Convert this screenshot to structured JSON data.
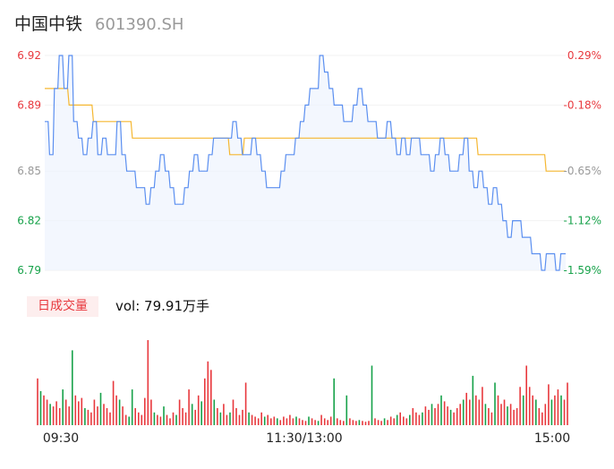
{
  "header": {
    "name": "中国中铁",
    "code": "601390.SH"
  },
  "volume": {
    "tab_label": "日成交量",
    "readout": "vol: 79.91万手"
  },
  "colors": {
    "price_line": "#5b8ff0",
    "avg_line": "#f5b731",
    "up": "#e8383d",
    "down": "#17a24a",
    "neutral": "#999999"
  },
  "chart_data": {
    "type": "line",
    "title": "",
    "price_axis": {
      "ylim": [
        6.79,
        6.92
      ],
      "ticks": [
        6.92,
        6.89,
        6.85,
        6.82,
        6.79
      ]
    },
    "pct_axis": {
      "ticks": [
        "0.29%",
        "-0.18%",
        "-0.65%",
        "-1.12%",
        "-1.59%"
      ]
    },
    "x_ticks": [
      "09:30",
      "11:30/13:00",
      "15:00"
    ],
    "price_series": [
      6.88,
      6.86,
      6.9,
      6.92,
      6.9,
      6.92,
      6.88,
      6.87,
      6.86,
      6.87,
      6.88,
      6.86,
      6.87,
      6.86,
      6.86,
      6.88,
      6.86,
      6.85,
      6.85,
      6.84,
      6.84,
      6.83,
      6.84,
      6.85,
      6.86,
      6.85,
      6.84,
      6.83,
      6.83,
      6.84,
      6.85,
      6.86,
      6.85,
      6.85,
      6.86,
      6.87,
      6.87,
      6.87,
      6.87,
      6.88,
      6.87,
      6.86,
      6.86,
      6.87,
      6.86,
      6.85,
      6.84,
      6.84,
      6.84,
      6.85,
      6.86,
      6.86,
      6.87,
      6.88,
      6.89,
      6.9,
      6.9,
      6.92,
      6.91,
      6.9,
      6.89,
      6.89,
      6.88,
      6.88,
      6.89,
      6.9,
      6.89,
      6.88,
      6.88,
      6.87,
      6.87,
      6.88,
      6.87,
      6.86,
      6.87,
      6.86,
      6.87,
      6.87,
      6.86,
      6.86,
      6.85,
      6.86,
      6.87,
      6.86,
      6.85,
      6.85,
      6.86,
      6.87,
      6.85,
      6.84,
      6.85,
      6.84,
      6.83,
      6.84,
      6.83,
      6.82,
      6.81,
      6.82,
      6.82,
      6.81,
      6.81,
      6.8,
      6.8,
      6.79,
      6.8,
      6.8,
      6.79,
      6.8,
      6.8
    ],
    "avg_series": [
      6.9,
      6.9,
      6.9,
      6.9,
      6.9,
      6.89,
      6.89,
      6.89,
      6.89,
      6.89,
      6.88,
      6.88,
      6.88,
      6.88,
      6.88,
      6.88,
      6.88,
      6.88,
      6.87,
      6.87,
      6.87,
      6.87,
      6.87,
      6.87,
      6.87,
      6.87,
      6.87,
      6.87,
      6.87,
      6.87,
      6.87,
      6.87,
      6.87,
      6.87,
      6.87,
      6.87,
      6.87,
      6.87,
      6.86,
      6.86,
      6.86,
      6.87,
      6.87,
      6.87,
      6.87,
      6.87,
      6.87,
      6.87,
      6.87,
      6.87,
      6.87,
      6.87,
      6.87,
      6.87,
      6.87,
      6.87,
      6.87,
      6.87,
      6.87,
      6.87,
      6.87,
      6.87,
      6.87,
      6.87,
      6.87,
      6.87,
      6.87,
      6.87,
      6.87,
      6.87,
      6.87,
      6.87,
      6.87,
      6.87,
      6.87,
      6.87,
      6.87,
      6.87,
      6.87,
      6.87,
      6.87,
      6.87,
      6.87,
      6.87,
      6.87,
      6.87,
      6.87,
      6.87,
      6.87,
      6.86,
      6.86,
      6.86,
      6.86,
      6.86,
      6.86,
      6.86,
      6.86,
      6.86,
      6.86,
      6.86,
      6.86,
      6.86,
      6.86,
      6.85,
      6.85,
      6.85,
      6.85,
      6.85
    ],
    "volume_bars": [
      [
        0.55,
        "up"
      ],
      [
        0.4,
        "down"
      ],
      [
        0.35,
        "up"
      ],
      [
        0.3,
        "up"
      ],
      [
        0.25,
        "down"
      ],
      [
        0.22,
        "up"
      ],
      [
        0.28,
        "up"
      ],
      [
        0.2,
        "up"
      ],
      [
        0.42,
        "down"
      ],
      [
        0.3,
        "up"
      ],
      [
        0.22,
        "up"
      ],
      [
        0.88,
        "down"
      ],
      [
        0.35,
        "up"
      ],
      [
        0.28,
        "up"
      ],
      [
        0.32,
        "up"
      ],
      [
        0.2,
        "down"
      ],
      [
        0.18,
        "up"
      ],
      [
        0.15,
        "up"
      ],
      [
        0.3,
        "up"
      ],
      [
        0.22,
        "up"
      ],
      [
        0.38,
        "down"
      ],
      [
        0.25,
        "up"
      ],
      [
        0.2,
        "up"
      ],
      [
        0.15,
        "up"
      ],
      [
        0.52,
        "up"
      ],
      [
        0.35,
        "up"
      ],
      [
        0.3,
        "down"
      ],
      [
        0.22,
        "up"
      ],
      [
        0.12,
        "up"
      ],
      [
        0.1,
        "down"
      ],
      [
        0.42,
        "down"
      ],
      [
        0.2,
        "up"
      ],
      [
        0.15,
        "up"
      ],
      [
        0.12,
        "up"
      ],
      [
        0.32,
        "up"
      ],
      [
        1.0,
        "up"
      ],
      [
        0.3,
        "up"
      ],
      [
        0.15,
        "down"
      ],
      [
        0.12,
        "up"
      ],
      [
        0.1,
        "up"
      ],
      [
        0.22,
        "down"
      ],
      [
        0.12,
        "up"
      ],
      [
        0.08,
        "up"
      ],
      [
        0.15,
        "up"
      ],
      [
        0.12,
        "down"
      ],
      [
        0.3,
        "up"
      ],
      [
        0.2,
        "up"
      ],
      [
        0.15,
        "up"
      ],
      [
        0.42,
        "up"
      ],
      [
        0.25,
        "down"
      ],
      [
        0.18,
        "up"
      ],
      [
        0.35,
        "up"
      ],
      [
        0.28,
        "down"
      ],
      [
        0.55,
        "up"
      ],
      [
        0.75,
        "up"
      ],
      [
        0.65,
        "up"
      ],
      [
        0.3,
        "down"
      ],
      [
        0.2,
        "up"
      ],
      [
        0.15,
        "down"
      ],
      [
        0.25,
        "up"
      ],
      [
        0.12,
        "up"
      ],
      [
        0.15,
        "down"
      ],
      [
        0.3,
        "up"
      ],
      [
        0.2,
        "up"
      ],
      [
        0.12,
        "up"
      ],
      [
        0.18,
        "up"
      ],
      [
        0.5,
        "up"
      ],
      [
        0.15,
        "down"
      ],
      [
        0.12,
        "up"
      ],
      [
        0.1,
        "up"
      ],
      [
        0.08,
        "up"
      ],
      [
        0.15,
        "up"
      ],
      [
        0.1,
        "down"
      ],
      [
        0.12,
        "up"
      ],
      [
        0.08,
        "up"
      ],
      [
        0.1,
        "up"
      ],
      [
        0.08,
        "down"
      ],
      [
        0.06,
        "up"
      ],
      [
        0.1,
        "up"
      ],
      [
        0.08,
        "up"
      ],
      [
        0.12,
        "up"
      ],
      [
        0.08,
        "up"
      ],
      [
        0.1,
        "down"
      ],
      [
        0.08,
        "up"
      ],
      [
        0.06,
        "up"
      ],
      [
        0.05,
        "up"
      ],
      [
        0.1,
        "down"
      ],
      [
        0.08,
        "up"
      ],
      [
        0.06,
        "up"
      ],
      [
        0.05,
        "down"
      ],
      [
        0.12,
        "up"
      ],
      [
        0.08,
        "up"
      ],
      [
        0.06,
        "up"
      ],
      [
        0.1,
        "up"
      ],
      [
        0.55,
        "down"
      ],
      [
        0.08,
        "up"
      ],
      [
        0.06,
        "up"
      ],
      [
        0.05,
        "up"
      ],
      [
        0.35,
        "down"
      ],
      [
        0.08,
        "up"
      ],
      [
        0.06,
        "up"
      ],
      [
        0.05,
        "up"
      ],
      [
        0.06,
        "down"
      ],
      [
        0.05,
        "up"
      ],
      [
        0.04,
        "up"
      ],
      [
        0.05,
        "up"
      ],
      [
        0.7,
        "down"
      ],
      [
        0.08,
        "up"
      ],
      [
        0.06,
        "up"
      ],
      [
        0.05,
        "up"
      ],
      [
        0.08,
        "down"
      ],
      [
        0.06,
        "up"
      ],
      [
        0.1,
        "up"
      ],
      [
        0.08,
        "up"
      ],
      [
        0.12,
        "down"
      ],
      [
        0.15,
        "up"
      ],
      [
        0.1,
        "up"
      ],
      [
        0.08,
        "up"
      ],
      [
        0.12,
        "down"
      ],
      [
        0.2,
        "up"
      ],
      [
        0.15,
        "up"
      ],
      [
        0.12,
        "up"
      ],
      [
        0.15,
        "down"
      ],
      [
        0.22,
        "up"
      ],
      [
        0.18,
        "up"
      ],
      [
        0.25,
        "down"
      ],
      [
        0.2,
        "up"
      ],
      [
        0.25,
        "up"
      ],
      [
        0.35,
        "down"
      ],
      [
        0.28,
        "up"
      ],
      [
        0.22,
        "up"
      ],
      [
        0.18,
        "down"
      ],
      [
        0.15,
        "up"
      ],
      [
        0.2,
        "up"
      ],
      [
        0.25,
        "up"
      ],
      [
        0.3,
        "down"
      ],
      [
        0.38,
        "up"
      ],
      [
        0.3,
        "up"
      ],
      [
        0.58,
        "down"
      ],
      [
        0.35,
        "up"
      ],
      [
        0.3,
        "up"
      ],
      [
        0.45,
        "up"
      ],
      [
        0.25,
        "down"
      ],
      [
        0.2,
        "up"
      ],
      [
        0.15,
        "up"
      ],
      [
        0.5,
        "down"
      ],
      [
        0.35,
        "up"
      ],
      [
        0.25,
        "up"
      ],
      [
        0.3,
        "up"
      ],
      [
        0.22,
        "down"
      ],
      [
        0.25,
        "up"
      ],
      [
        0.18,
        "up"
      ],
      [
        0.2,
        "up"
      ],
      [
        0.45,
        "up"
      ],
      [
        0.35,
        "down"
      ],
      [
        0.7,
        "up"
      ],
      [
        0.45,
        "up"
      ],
      [
        0.35,
        "up"
      ],
      [
        0.3,
        "down"
      ],
      [
        0.2,
        "up"
      ],
      [
        0.15,
        "up"
      ],
      [
        0.25,
        "up"
      ],
      [
        0.48,
        "up"
      ],
      [
        0.3,
        "down"
      ],
      [
        0.35,
        "up"
      ],
      [
        0.42,
        "up"
      ],
      [
        0.35,
        "down"
      ],
      [
        0.3,
        "up"
      ],
      [
        0.5,
        "up"
      ]
    ]
  }
}
